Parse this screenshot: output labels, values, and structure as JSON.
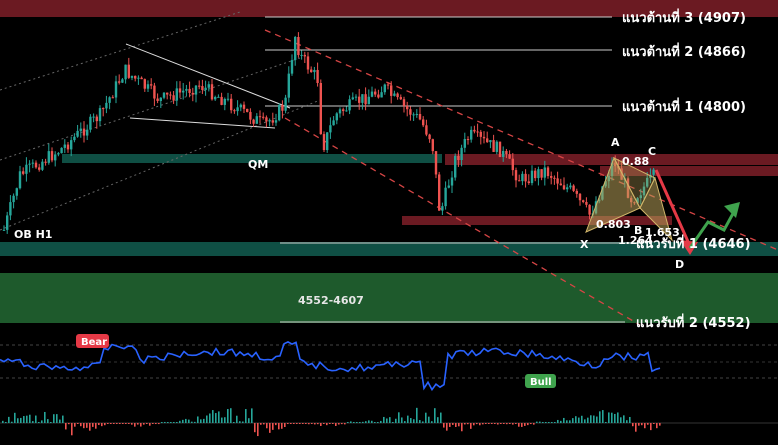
{
  "chart_data": {
    "type": "candlestick",
    "price_range": [
      4520,
      4920
    ],
    "resistance_levels": [
      {
        "label": "แนวต้านที่ 3 (4907)",
        "value": 4907
      },
      {
        "label": "แนวต้านที่ 2 (4866)",
        "value": 4866
      },
      {
        "label": "แนวต้านที่ 1 (4800)",
        "value": 4800
      }
    ],
    "support_levels": [
      {
        "label": "แนวรับที่ 1 (4646)",
        "value": 4646
      },
      {
        "label": "แนวรับที่ 2 (4552)",
        "value": 4552
      }
    ],
    "zones": [
      {
        "label": "4552-4607",
        "low": 4552,
        "high": 4607,
        "color": "#1e5a2c"
      }
    ],
    "annotations": [
      {
        "text": "QM"
      },
      {
        "text": "OB H1"
      }
    ],
    "harmonic": {
      "points": [
        "X",
        "A",
        "B",
        "C",
        "D"
      ],
      "ratios": [
        "0.88",
        "0.803",
        "1.653",
        "1.264"
      ]
    },
    "indicator_badges": [
      {
        "text": "Bear",
        "color": "#e53946"
      },
      {
        "text": "Bull",
        "color": "#3fa34d"
      }
    ],
    "colors": {
      "up": "#26a69a",
      "down": "#ef5350",
      "resistance_band": "#6b1a22",
      "support_band": "#0f4f44",
      "oscillator": "#2962ff",
      "trend_line": "#d64545"
    }
  }
}
